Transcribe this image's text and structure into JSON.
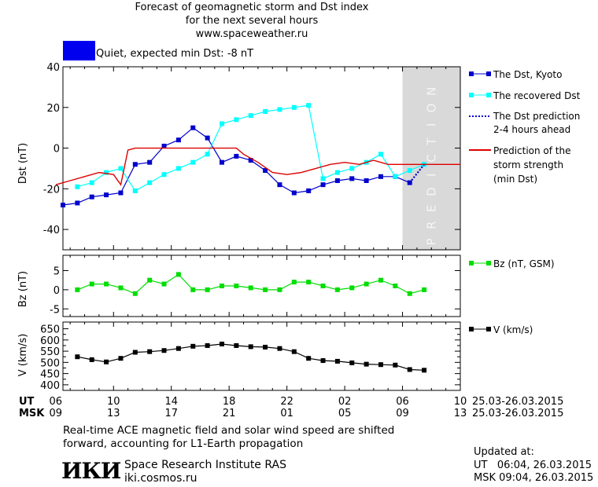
{
  "header": {
    "title_line1": "Forecast of geomagnetic storm and Dst index",
    "title_line2": "for the next several hours",
    "title_line3": "www.spaceweather.ru"
  },
  "status": {
    "color": "#0000ee",
    "text": "Quiet, expected min Dst: -8 nT"
  },
  "chart_data": [
    {
      "type": "line",
      "ylabel": "Dst (nT)",
      "ylim": [
        -50,
        40
      ],
      "yticks": [
        40,
        20,
        0,
        -20,
        -40
      ],
      "xlim": [
        6.5,
        34
      ],
      "grid": false,
      "prediction_region": {
        "x": [
          30,
          34
        ],
        "label": "PREDICTION",
        "color": "#d9d9d9"
      },
      "series": [
        {
          "name": "The Dst, Kyoto",
          "color": "#0000cc",
          "marker": "square",
          "style": "solid",
          "x": [
            6.5,
            7.5,
            8.5,
            9.5,
            10.5,
            11.5,
            12.5,
            13.5,
            14.5,
            15.5,
            16.5,
            17.5,
            18.5,
            19.5,
            20.5,
            21.5,
            22.5,
            23.5,
            24.5,
            25.5,
            26.5,
            27.5,
            28.5,
            29.5,
            30.5
          ],
          "y": [
            -28,
            -27,
            -24,
            -23,
            -22,
            -8,
            -7,
            1,
            4,
            10,
            5,
            -7,
            -4,
            -6,
            -11,
            -18,
            -22,
            -21,
            -18,
            -16,
            -15,
            -16,
            -14,
            -14,
            -17
          ]
        },
        {
          "name": "The recovered Dst",
          "color": "#00ffff",
          "marker": "square",
          "style": "solid",
          "x": [
            7.5,
            8.5,
            9.5,
            10.5,
            11.5,
            12.5,
            13.5,
            14.5,
            15.5,
            16.5,
            17.5,
            18.5,
            19.5,
            20.5,
            21.5,
            22.5,
            23.5,
            24.5,
            25.5,
            26.5,
            27.5,
            28.5,
            29.5,
            30.5,
            31.5
          ],
          "y": [
            -19,
            -17,
            -12,
            -10,
            -21,
            -17,
            -13,
            -10,
            -7,
            -3,
            12,
            14,
            16,
            18,
            19,
            20,
            21,
            -15,
            -12,
            -10,
            -7,
            -3,
            -14,
            -11,
            -8
          ]
        },
        {
          "name": "The Dst prediction 2-4 hours ahead",
          "color": "#0000cc",
          "marker": "none",
          "style": "dotted",
          "x": [
            30.5,
            31.5
          ],
          "y": [
            -17,
            -8
          ]
        },
        {
          "name": "Prediction of the storm strength (min Dst)",
          "color": "#dd0000",
          "marker": "none",
          "style": "solid",
          "x": [
            6,
            7,
            8,
            9,
            10,
            10.5,
            11,
            11.5,
            12,
            13,
            14,
            15,
            16,
            17,
            18,
            18.5,
            19,
            20,
            21,
            22,
            23,
            24,
            25,
            26,
            27,
            28,
            29,
            30,
            31,
            32,
            33,
            34
          ],
          "y": [
            -18,
            -16,
            -14,
            -12,
            -13,
            -18,
            -1,
            0,
            0,
            0,
            0,
            0,
            0,
            0,
            0,
            0,
            -3,
            -7,
            -12,
            -13,
            -12,
            -10,
            -8,
            -7,
            -8,
            -6,
            -8,
            -8,
            -8,
            -8,
            -8,
            -8
          ]
        }
      ]
    },
    {
      "type": "line",
      "ylabel": "Bz (nT)",
      "ylim": [
        -7,
        9
      ],
      "yticks": [
        5,
        0,
        -5
      ],
      "xlim": [
        6.5,
        34
      ],
      "series": [
        {
          "name": "Bz (nT, GSM)",
          "color": "#00dd00",
          "marker": "square",
          "style": "solid",
          "x": [
            7.5,
            8.5,
            9.5,
            10.5,
            11.5,
            12.5,
            13.5,
            14.5,
            15.5,
            16.5,
            17.5,
            18.5,
            19.5,
            20.5,
            21.5,
            22.5,
            23.5,
            24.5,
            25.5,
            26.5,
            27.5,
            28.5,
            29.5,
            30.5,
            31.5
          ],
          "y": [
            0,
            1.5,
            1.5,
            0.5,
            -1,
            2.5,
            1.5,
            4,
            0,
            0,
            1,
            1,
            0.5,
            0,
            0,
            2,
            2,
            1,
            0,
            0.5,
            1.5,
            2.5,
            1,
            -1,
            0
          ]
        }
      ]
    },
    {
      "type": "line",
      "ylabel": "V (km/s)",
      "ylim": [
        375,
        680
      ],
      "yticks": [
        650,
        600,
        550,
        500,
        450,
        400
      ],
      "extra_ticks": [
        625,
        575,
        525,
        475,
        425
      ],
      "xlim": [
        6.5,
        34
      ],
      "series": [
        {
          "name": "V (km/s)",
          "color": "#000000",
          "marker": "square",
          "style": "solid",
          "x": [
            7.5,
            8.5,
            9.5,
            10.5,
            11.5,
            12.5,
            13.5,
            14.5,
            15.5,
            16.5,
            17.5,
            18.5,
            19.5,
            20.5,
            21.5,
            22.5,
            23.5,
            24.5,
            25.5,
            26.5,
            27.5,
            28.5,
            29.5,
            30.5,
            31.5
          ],
          "y": [
            525,
            512,
            502,
            518,
            545,
            548,
            553,
            562,
            572,
            575,
            582,
            575,
            570,
            568,
            562,
            548,
            518,
            508,
            505,
            498,
            492,
            490,
            488,
            468,
            465
          ]
        }
      ]
    }
  ],
  "axis": {
    "ut_label": "UT",
    "msk_label": "MSK",
    "ut_ticks": [
      "06",
      "10",
      "14",
      "18",
      "22",
      "02",
      "06",
      "10"
    ],
    "msk_ticks": [
      "09",
      "13",
      "17",
      "21",
      "01",
      "05",
      "09",
      "13"
    ],
    "date_range_ut": "25.03-26.03.2015",
    "date_range_msk": "25.03-26.03.2015"
  },
  "legend": {
    "dst_kyoto": "The Dst, Kyoto",
    "recovered": "The recovered Dst",
    "pred_line1": "The Dst prediction",
    "pred_line2": "2-4 hours ahead",
    "storm_line1": "Prediction of the",
    "storm_line2": "storm strength",
    "storm_line3": "(min Dst)",
    "bz": "Bz (nT, GSM)",
    "v": "V (km/s)"
  },
  "footer": {
    "note_line1": "Real-time ACE magnetic field and solar wind speed are shifted",
    "note_line2": "forward, accounting for L1-Earth propagation",
    "logo_text": "ИКИ",
    "institute": "Space Research Institute RAS",
    "website": "iki.cosmos.ru",
    "updated_label": "Updated at:",
    "updated_ut": "UT   06:04, 26.03.2015",
    "updated_msk": "MSK 09:04, 26.03.2015"
  }
}
